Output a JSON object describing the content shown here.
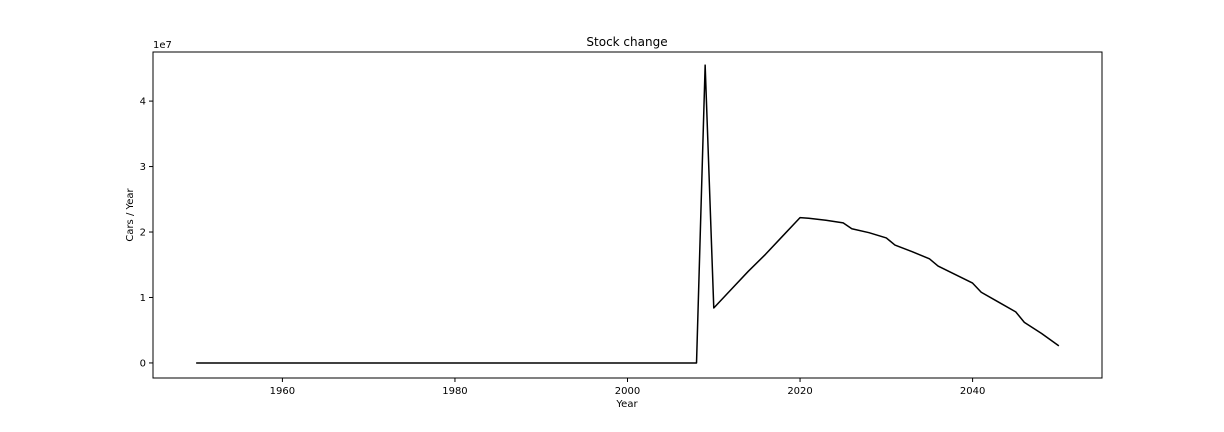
{
  "chart_data": {
    "type": "line",
    "title": "Stock change",
    "xlabel": "Year",
    "ylabel": "Cars / Year",
    "y_offset_text": "1e7",
    "xlim": [
      1945,
      2055
    ],
    "ylim": [
      -2300000,
      47500000
    ],
    "x_ticks": [
      {
        "value": 1960,
        "label": "1960"
      },
      {
        "value": 1980,
        "label": "1980"
      },
      {
        "value": 2000,
        "label": "2000"
      },
      {
        "value": 2020,
        "label": "2020"
      },
      {
        "value": 2040,
        "label": "2040"
      }
    ],
    "y_ticks": [
      {
        "value": 0,
        "label": "0"
      },
      {
        "value": 10000000,
        "label": "1"
      },
      {
        "value": 20000000,
        "label": "2"
      },
      {
        "value": 30000000,
        "label": "3"
      },
      {
        "value": 40000000,
        "label": "4"
      }
    ],
    "grid": false,
    "series": [
      {
        "color": "#000000",
        "x": [
          1950,
          2008,
          2009,
          2010,
          2012,
          2014,
          2016,
          2018,
          2020,
          2021,
          2023,
          2025,
          2026,
          2028,
          2030,
          2031,
          2033,
          2035,
          2036,
          2038,
          2040,
          2041,
          2043,
          2045,
          2046,
          2048,
          2050
        ],
        "y": [
          0,
          0,
          45500000,
          8400000,
          11200000,
          14000000,
          16600000,
          19400000,
          22200000,
          22100000,
          21800000,
          21400000,
          20500000,
          19900000,
          19100000,
          18000000,
          17000000,
          15900000,
          14800000,
          13500000,
          12200000,
          10800000,
          9300000,
          7800000,
          6200000,
          4500000,
          2600000
        ]
      }
    ]
  }
}
